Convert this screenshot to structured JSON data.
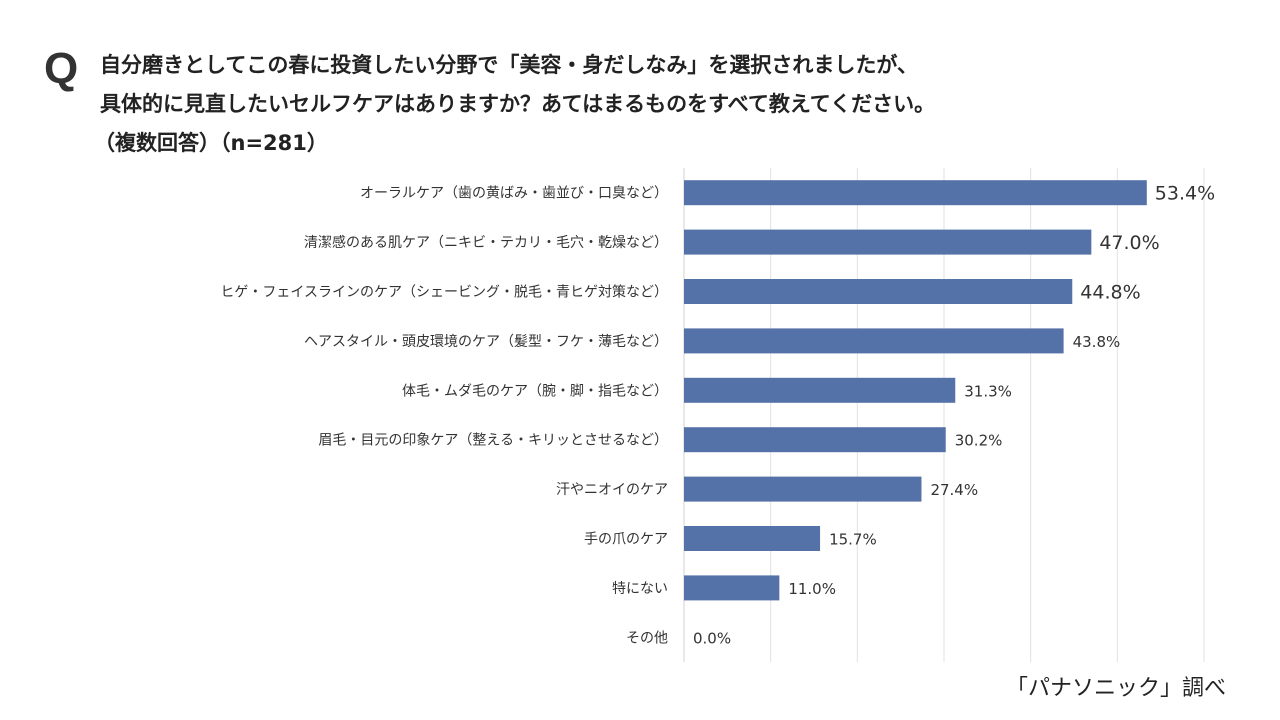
{
  "question": {
    "mark": "Q",
    "line1": "自分磨きとしてこの春に投資したい分野で「美容・身だしなみ」を選択されましたが、",
    "line2": "具体的に見直したいセルフケアはありますか？あてはまるものをすべて教えてください。",
    "line3": "（複数回答）（n=281）"
  },
  "source": "「パナソニック」調べ",
  "chart_data": {
    "type": "bar",
    "orientation": "horizontal",
    "categories": [
      "オーラルケア（歯の黄ばみ・歯並び・口臭など）",
      "清潔感のある肌ケア（ニキビ・テカリ・毛穴・乾燥など）",
      "ヒゲ・フェイスラインのケア（シェービング・脱毛・青ヒゲ対策など）",
      "ヘアスタイル・頭皮環境のケア（髪型・フケ・薄毛など）",
      "体毛・ムダ毛のケア（腕・脚・指毛など）",
      "眉毛・目元の印象ケア（整える・キリッとさせるなど）",
      "汗やニオイのケア",
      "手の爪のケア",
      "特にない",
      "その他"
    ],
    "values": [
      53.4,
      47.0,
      44.8,
      43.8,
      31.3,
      30.2,
      27.4,
      15.7,
      11.0,
      0.0
    ],
    "labels": [
      "53.4%",
      "47.0%",
      "44.8%",
      "43.8%",
      "31.3%",
      "30.2%",
      "27.4%",
      "15.7%",
      "11.0%",
      "0.0%"
    ],
    "xlim": [
      0,
      60
    ],
    "grid": true,
    "bar_color": "#5572a8"
  }
}
